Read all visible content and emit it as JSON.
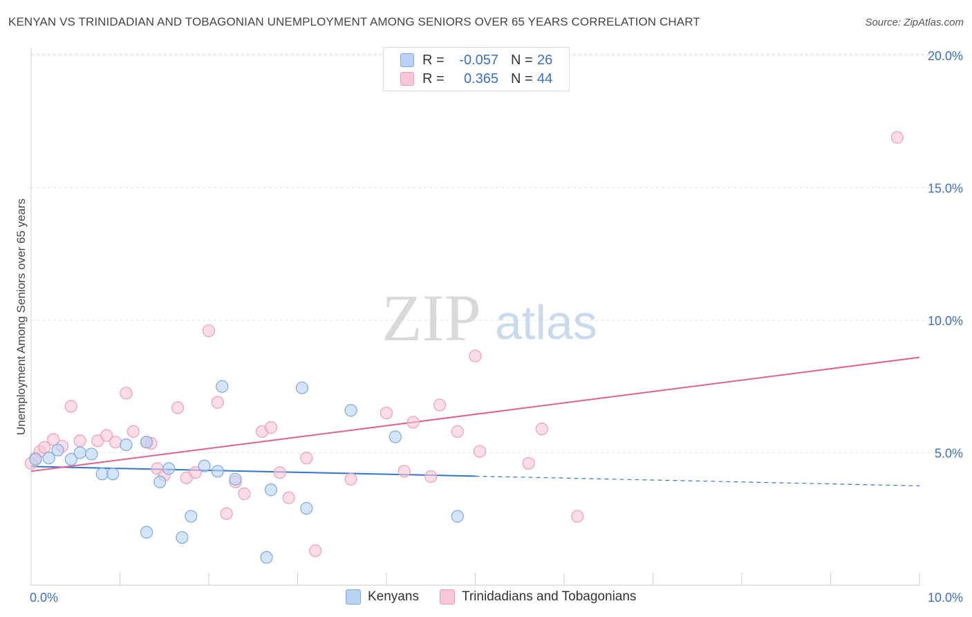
{
  "title": "KENYAN VS TRINIDADIAN AND TOBAGONIAN UNEMPLOYMENT AMONG SENIORS OVER 65 YEARS CORRELATION CHART",
  "source": "Source: ZipAtlas.com",
  "watermark": {
    "zip": "ZIP",
    "atlas": "atlas"
  },
  "colors": {
    "kenyans_fill": "#b9d3f5",
    "kenyans_stroke": "#7aa7e0",
    "kenyans_line": "#2f74d0",
    "trini_fill": "#f8c6d6",
    "trini_stroke": "#ee9db8",
    "trini_line": "#e0608a",
    "tick_text": "#3a6fc4",
    "grid": "#e2e2e2"
  },
  "legend": {
    "rows": [
      {
        "r_label": "R =",
        "r_value": "-0.057",
        "n_label": "N =",
        "n_value": "26"
      },
      {
        "r_label": "R =",
        "r_value": "0.365",
        "n_label": "N =",
        "n_value": "44"
      }
    ]
  },
  "bottom_legend": {
    "kenyans": "Kenyans",
    "trini": "Trinidadians and Tobagonians"
  },
  "chart_data": {
    "type": "scatter",
    "title": "KENYAN VS TRINIDADIAN AND TOBAGONIAN UNEMPLOYMENT AMONG SENIORS OVER 65 YEARS CORRELATION CHART",
    "xlabel": "",
    "ylabel": "Unemployment Among Seniors over 65 years",
    "xlim": [
      0,
      10
    ],
    "ylim": [
      0,
      20.5
    ],
    "x_tick_labels": [
      "0.0%",
      "10.0%"
    ],
    "y_ticks": [
      5,
      10,
      15,
      20
    ],
    "y_tick_labels": [
      "5.0%",
      "10.0%",
      "15.0%",
      "20.0%"
    ],
    "grid": true,
    "legend_position": "top-center",
    "series": [
      {
        "name": "Kenyans",
        "r": -0.057,
        "n": 26,
        "points": [
          [
            0.05,
            4.75
          ],
          [
            0.2,
            4.8
          ],
          [
            0.3,
            5.1
          ],
          [
            0.45,
            4.75
          ],
          [
            0.55,
            5.0
          ],
          [
            0.68,
            4.95
          ],
          [
            0.8,
            4.2
          ],
          [
            0.92,
            4.2
          ],
          [
            1.07,
            5.3
          ],
          [
            1.3,
            5.4
          ],
          [
            1.3,
            2.0
          ],
          [
            1.45,
            3.9
          ],
          [
            1.55,
            4.4
          ],
          [
            1.7,
            1.8
          ],
          [
            1.8,
            2.6
          ],
          [
            1.95,
            4.5
          ],
          [
            2.1,
            4.3
          ],
          [
            2.15,
            7.5
          ],
          [
            2.3,
            4.0
          ],
          [
            2.65,
            1.05
          ],
          [
            2.7,
            3.6
          ],
          [
            3.05,
            7.45
          ],
          [
            3.1,
            2.9
          ],
          [
            3.6,
            6.6
          ],
          [
            4.1,
            5.6
          ],
          [
            4.8,
            2.6
          ]
        ],
        "trend": {
          "x_start": 0.0,
          "y_start": 4.48,
          "x_solid_end": 5.0,
          "x_end": 10.0,
          "y_end": 3.75
        }
      },
      {
        "name": "Trinidadians and Tobagonians",
        "r": 0.365,
        "n": 44,
        "points": [
          [
            0.05,
            4.8
          ],
          [
            0.1,
            5.05
          ],
          [
            0.15,
            5.2
          ],
          [
            0.25,
            5.5
          ],
          [
            0.35,
            5.25
          ],
          [
            0.45,
            6.75
          ],
          [
            0.55,
            5.45
          ],
          [
            0.75,
            5.45
          ],
          [
            0.85,
            5.65
          ],
          [
            0.95,
            5.4
          ],
          [
            1.07,
            7.25
          ],
          [
            1.15,
            5.8
          ],
          [
            1.3,
            5.4
          ],
          [
            1.35,
            5.35
          ],
          [
            1.42,
            4.4
          ],
          [
            1.5,
            4.15
          ],
          [
            1.65,
            6.7
          ],
          [
            1.75,
            4.05
          ],
          [
            1.85,
            4.25
          ],
          [
            2.0,
            9.6
          ],
          [
            2.1,
            6.9
          ],
          [
            2.2,
            2.7
          ],
          [
            2.3,
            3.9
          ],
          [
            2.4,
            3.45
          ],
          [
            2.6,
            5.8
          ],
          [
            2.7,
            5.95
          ],
          [
            2.8,
            4.25
          ],
          [
            2.9,
            3.3
          ],
          [
            3.1,
            4.8
          ],
          [
            3.2,
            1.3
          ],
          [
            3.6,
            4.0
          ],
          [
            4.0,
            6.5
          ],
          [
            4.2,
            4.3
          ],
          [
            4.3,
            6.15
          ],
          [
            4.5,
            4.1
          ],
          [
            4.6,
            6.8
          ],
          [
            4.8,
            5.8
          ],
          [
            5.0,
            8.65
          ],
          [
            5.05,
            5.05
          ],
          [
            5.6,
            4.6
          ],
          [
            5.75,
            5.9
          ],
          [
            6.15,
            2.6
          ],
          [
            9.75,
            16.9
          ],
          [
            0.0,
            4.6
          ]
        ],
        "trend": {
          "x_start": 0.0,
          "y_start": 4.3,
          "x_end": 10.0,
          "y_end": 8.6
        }
      }
    ]
  }
}
